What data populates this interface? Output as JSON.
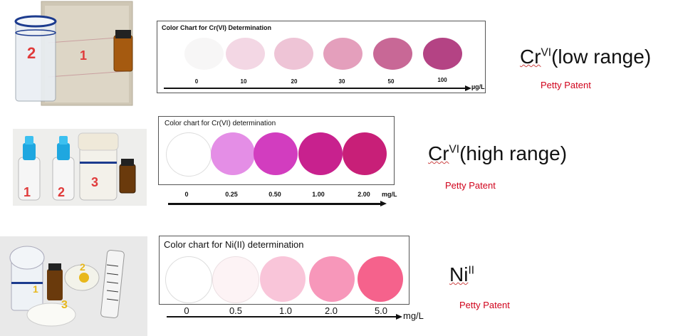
{
  "rows": [
    {
      "photo": {
        "labels": [
          "2",
          "1"
        ]
      },
      "chart": {
        "title": "Color Chart for Cr(VI) Determination",
        "ticks": [
          "0",
          "10",
          "20",
          "30",
          "50",
          "100"
        ],
        "unit": "µg/L",
        "colors": [
          "#f7f6f6",
          "#f3d7e4",
          "#eec4d6",
          "#e49fbc",
          "#c86896",
          "#b44384"
        ]
      },
      "species": {
        "base": "Cr",
        "sup": "VI",
        "suffix": "(low range)"
      },
      "patent": "Petty Patent"
    },
    {
      "photo": {
        "labels": [
          "1",
          "2",
          "3"
        ]
      },
      "chart": {
        "title": "Color chart for Cr(VI) determination",
        "ticks": [
          "0",
          "0.25",
          "0.50",
          "1.00",
          "2.00"
        ],
        "unit": "mg/L",
        "colors": [
          "#ffffff",
          "#e48ee6",
          "#d23dbf",
          "#c8218e",
          "#c81f78"
        ]
      },
      "species": {
        "base": "Cr",
        "sup": "VI",
        "suffix": "(high range)"
      },
      "patent": "Petty Patent"
    },
    {
      "photo": {
        "labels": [
          "1",
          "2",
          "3"
        ]
      },
      "chart": {
        "title": "Color chart for Ni(II) determination",
        "ticks": [
          "0",
          "0.5",
          "1.0",
          "2.0",
          "5.0"
        ],
        "unit": "mg/L",
        "colors": [
          "#ffffff",
          "#fdf3f5",
          "#f9c5d9",
          "#f797ba",
          "#f5628c"
        ]
      },
      "species": {
        "base": "Ni",
        "sup": "II",
        "suffix": ""
      },
      "patent": "Petty Patent"
    }
  ]
}
